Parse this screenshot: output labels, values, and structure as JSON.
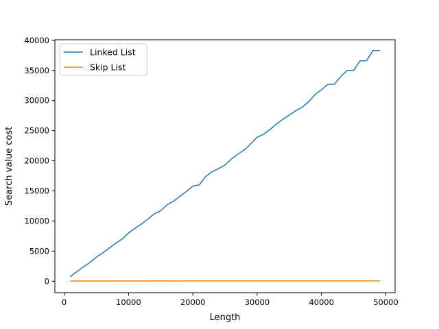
{
  "chart_data": {
    "type": "line",
    "title": "",
    "xlabel": "Length",
    "ylabel": "Search value cost",
    "xlim": [
      -1450,
      51450
    ],
    "ylim": [
      -1900,
      40100
    ],
    "xticks": [
      0,
      10000,
      20000,
      30000,
      40000,
      50000
    ],
    "xtick_labels": [
      "0",
      "10000",
      "20000",
      "30000",
      "40000",
      "50000"
    ],
    "yticks": [
      0,
      5000,
      10000,
      15000,
      20000,
      25000,
      30000,
      35000,
      40000
    ],
    "ytick_labels": [
      "0",
      "5000",
      "10000",
      "15000",
      "20000",
      "25000",
      "30000",
      "35000",
      "40000"
    ],
    "grid": false,
    "legend_position": "top-left",
    "x": [
      1000,
      2000,
      3000,
      4000,
      5000,
      6000,
      7000,
      8000,
      9000,
      10000,
      11000,
      12000,
      13000,
      14000,
      15000,
      16000,
      17000,
      18000,
      19000,
      20000,
      21000,
      22000,
      23000,
      24000,
      25000,
      26000,
      27000,
      28000,
      29000,
      30000,
      31000,
      32000,
      33000,
      34000,
      35000,
      36000,
      37000,
      38000,
      39000,
      40000,
      41000,
      42000,
      43000,
      44000,
      45000,
      46000,
      47000,
      48000,
      49000
    ],
    "series": [
      {
        "name": "Linked List",
        "color": "#1f77b4",
        "values": [
          800,
          1600,
          2400,
          3100,
          4000,
          4700,
          5500,
          6300,
          7000,
          8000,
          8800,
          9500,
          10300,
          11200,
          11700,
          12700,
          13300,
          14100,
          14900,
          15800,
          16000,
          17400,
          18200,
          18700,
          19300,
          20300,
          21100,
          21800,
          22800,
          23900,
          24400,
          25200,
          26100,
          26900,
          27600,
          28300,
          28900,
          29800,
          31000,
          31800,
          32700,
          32700,
          34000,
          35000,
          35000,
          36600,
          36600,
          38300,
          38300
        ]
      },
      {
        "name": "Skip List",
        "color": "#ff7f0e",
        "values": [
          25,
          30,
          30,
          35,
          30,
          40,
          40,
          35,
          45,
          40,
          40,
          45,
          40,
          45,
          50,
          45,
          40,
          45,
          50,
          45,
          50,
          50,
          55,
          50,
          45,
          50,
          50,
          55,
          50,
          55,
          55,
          50,
          55,
          50,
          50,
          55,
          55,
          50,
          55,
          55,
          50,
          55,
          55,
          50,
          55,
          55,
          50,
          55,
          55
        ]
      }
    ]
  }
}
